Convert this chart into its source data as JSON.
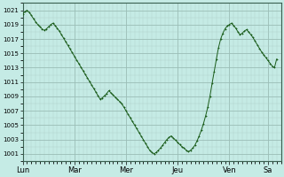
{
  "background_color": "#c5ebe5",
  "plot_bg_color": "#c5ebe5",
  "line_color": "#1a5c1a",
  "marker_color": "#1a5c1a",
  "grid_color_major": "#9abdb6",
  "grid_color_minor": "#aed0c9",
  "ylim": [
    1000,
    1022
  ],
  "yticks": [
    1001,
    1003,
    1005,
    1007,
    1009,
    1011,
    1013,
    1015,
    1017,
    1019,
    1021
  ],
  "day_labels": [
    "Lun",
    "Mar",
    "Mer",
    "Jeu",
    "Ven",
    "Sa"
  ],
  "day_tick_positions": [
    0,
    24,
    48,
    72,
    96,
    114
  ],
  "xlim": [
    0,
    120
  ],
  "pressure": [
    1020.5,
    1020.8,
    1021.0,
    1020.7,
    1020.3,
    1019.8,
    1019.4,
    1019.0,
    1018.7,
    1018.4,
    1018.2,
    1018.4,
    1018.7,
    1019.0,
    1019.2,
    1018.9,
    1018.5,
    1018.1,
    1017.6,
    1017.1,
    1016.6,
    1016.1,
    1015.6,
    1015.1,
    1014.6,
    1014.1,
    1013.6,
    1013.1,
    1012.6,
    1012.1,
    1011.6,
    1011.1,
    1010.6,
    1010.1,
    1009.6,
    1009.1,
    1008.6,
    1008.8,
    1009.1,
    1009.4,
    1009.8,
    1009.5,
    1009.2,
    1008.9,
    1008.6,
    1008.3,
    1008.0,
    1007.5,
    1007.0,
    1006.5,
    1006.0,
    1005.5,
    1005.0,
    1004.5,
    1004.0,
    1003.5,
    1003.0,
    1002.5,
    1002.0,
    1001.5,
    1001.2,
    1001.0,
    1001.2,
    1001.5,
    1001.8,
    1002.2,
    1002.6,
    1003.0,
    1003.3,
    1003.5,
    1003.2,
    1002.9,
    1002.6,
    1002.3,
    1002.0,
    1001.8,
    1001.5,
    1001.3,
    1001.5,
    1001.8,
    1002.2,
    1002.8,
    1003.5,
    1004.3,
    1005.2,
    1006.3,
    1007.5,
    1009.0,
    1010.8,
    1012.5,
    1014.2,
    1015.8,
    1017.0,
    1017.8,
    1018.4,
    1018.8,
    1019.0,
    1019.2,
    1018.9,
    1018.5,
    1018.0,
    1017.6,
    1017.8,
    1018.1,
    1018.3,
    1018.0,
    1017.6,
    1017.2,
    1016.7,
    1016.2,
    1015.7,
    1015.2,
    1014.8,
    1014.4,
    1014.0,
    1013.6,
    1013.2,
    1013.0,
    1014.2
  ]
}
